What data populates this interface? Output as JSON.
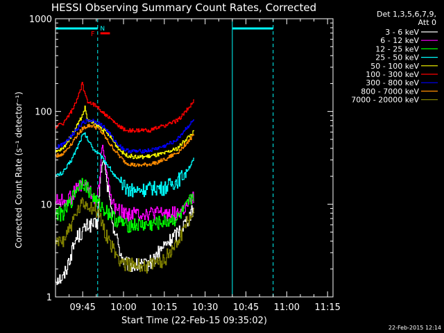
{
  "chart_data": {
    "type": "line",
    "title": "HESSI Observing Summary Count Rates, Corrected",
    "xlabel": "Start Time (22-Feb-15 09:35:02)",
    "ylabel": "Corrected Count Rate (s⁻¹ detector⁻¹)",
    "y_scale": "log",
    "ylim": [
      1,
      1000
    ],
    "xlim_minutes_after_0935": [
      0,
      102
    ],
    "x_ticks": [
      "09:45",
      "10:00",
      "10:15",
      "10:30",
      "10:45",
      "11:00",
      "11:15"
    ],
    "y_ticks": [
      "1",
      "10",
      "100",
      "1000"
    ],
    "legend_header": [
      "Det 1,3,5,6,7,9,",
      "Att 0"
    ],
    "legend_position": "outside-right",
    "flag_labels": {
      "flare": "F",
      "saa": "N"
    },
    "colors": {
      "axes": "#ffffff",
      "markers": "#00ffff",
      "flare": "#ff0000"
    },
    "time_ticks_minutes": [
      10,
      25,
      40,
      55,
      70,
      85,
      100
    ],
    "night_bars_minutes": [
      [
        0,
        15.5
      ],
      [
        65,
        80
      ]
    ],
    "dashed_markers_minutes": [
      15.5,
      80
    ],
    "solid_markers_minutes": [
      0,
      65
    ],
    "flare_bar_minutes": [
      16.5,
      20
    ],
    "series": [
      {
        "name": "3 - 6 keV",
        "color": "#ffffff",
        "x": [
          0,
          3,
          6,
          8,
          10,
          12,
          14,
          15.5,
          17,
          18,
          19,
          20,
          21,
          22,
          23,
          24,
          25,
          26,
          28,
          30,
          33,
          36,
          38,
          40,
          42,
          45,
          48,
          51
        ],
        "y": [
          1.6,
          1.6,
          3.0,
          4.5,
          5.0,
          6.0,
          6.0,
          6.0,
          25,
          30,
          18,
          11,
          7,
          5,
          4,
          3,
          2.5,
          2.3,
          2.2,
          2.2,
          2.2,
          2.5,
          3,
          3.5,
          4,
          5,
          6.5,
          9
        ]
      },
      {
        "name": "6 - 12 keV",
        "color": "#ff00ff",
        "x": [
          0,
          3,
          6,
          8,
          10,
          12,
          14,
          15.5,
          16.5,
          17,
          17.5,
          18,
          19,
          20,
          21,
          22,
          24,
          26,
          30,
          35,
          40,
          45,
          48,
          51
        ],
        "y": [
          11,
          11,
          12,
          15,
          17,
          15,
          12,
          11,
          20,
          35,
          45,
          35,
          22,
          15,
          11,
          9,
          8.5,
          8,
          8,
          8,
          8,
          8,
          9,
          12
        ]
      },
      {
        "name": "12 - 25 keV",
        "color": "#00ff00",
        "x": [
          0,
          3,
          6,
          8,
          10,
          12,
          14,
          16,
          18,
          20,
          22,
          24,
          26,
          30,
          35,
          40,
          45,
          48,
          51
        ],
        "y": [
          8,
          8,
          11,
          15,
          18,
          15,
          12,
          10,
          9,
          8,
          7,
          6.5,
          6,
          6,
          6,
          6.5,
          7,
          9,
          13
        ]
      },
      {
        "name": "25 - 50 keV",
        "color": "#00ffff",
        "x": [
          0,
          3,
          6,
          8,
          10,
          11,
          12,
          14,
          16,
          18,
          20,
          22,
          24,
          26,
          30,
          35,
          40,
          45,
          48,
          51
        ],
        "y": [
          20,
          22,
          30,
          40,
          55,
          57,
          50,
          40,
          35,
          30,
          25,
          20,
          17,
          15,
          14,
          15,
          15,
          18,
          22,
          30
        ]
      },
      {
        "name": "50 - 100 keV",
        "color": "#ffff00",
        "x": [
          0,
          3,
          6,
          8,
          10,
          11,
          12,
          14,
          16,
          18,
          20,
          22,
          24,
          26,
          30,
          35,
          40,
          45,
          48,
          51
        ],
        "y": [
          36,
          40,
          55,
          70,
          90,
          110,
          80,
          75,
          70,
          62,
          55,
          45,
          38,
          34,
          32,
          33,
          35,
          40,
          50,
          60
        ]
      },
      {
        "name": "100 - 300 keV",
        "color": "#ff0000",
        "x": [
          0,
          3,
          6,
          8,
          10,
          11,
          12,
          14,
          16,
          18,
          20,
          22,
          24,
          26,
          30,
          35,
          40,
          45,
          48,
          51
        ],
        "y": [
          68,
          75,
          100,
          130,
          200,
          150,
          130,
          120,
          110,
          95,
          85,
          75,
          68,
          63,
          62,
          63,
          70,
          80,
          100,
          130
        ]
      },
      {
        "name": "300 - 800 keV",
        "color": "#0000ff",
        "x": [
          0,
          3,
          6,
          8,
          10,
          12,
          14,
          16,
          18,
          20,
          22,
          24,
          26,
          30,
          35,
          40,
          45,
          48,
          51
        ],
        "y": [
          40,
          45,
          55,
          65,
          75,
          80,
          80,
          75,
          68,
          58,
          48,
          42,
          38,
          37,
          38,
          42,
          50,
          65,
          80
        ]
      },
      {
        "name": "800 - 7000 keV",
        "color": "#ff8c00",
        "x": [
          0,
          3,
          6,
          8,
          10,
          12,
          14,
          16,
          18,
          20,
          22,
          24,
          26,
          30,
          35,
          40,
          45,
          48,
          51
        ],
        "y": [
          33,
          35,
          45,
          55,
          65,
          70,
          70,
          65,
          55,
          45,
          38,
          32,
          28,
          26,
          27,
          30,
          36,
          45,
          55
        ]
      },
      {
        "name": "7000 - 20000 keV",
        "color": "#808000",
        "x": [
          0,
          1.5,
          3,
          6,
          8,
          10,
          12,
          14,
          16,
          18,
          20,
          22,
          24,
          26,
          30,
          35,
          40,
          45,
          48,
          51
        ],
        "y": [
          3.5,
          4,
          4.2,
          6,
          8,
          10,
          10,
          9,
          8,
          5.5,
          4,
          3,
          2.5,
          2.3,
          2.2,
          2.2,
          2.5,
          4,
          6,
          9
        ]
      }
    ]
  },
  "footer": {
    "timestamp": "22-Feb-2015 12:14"
  }
}
